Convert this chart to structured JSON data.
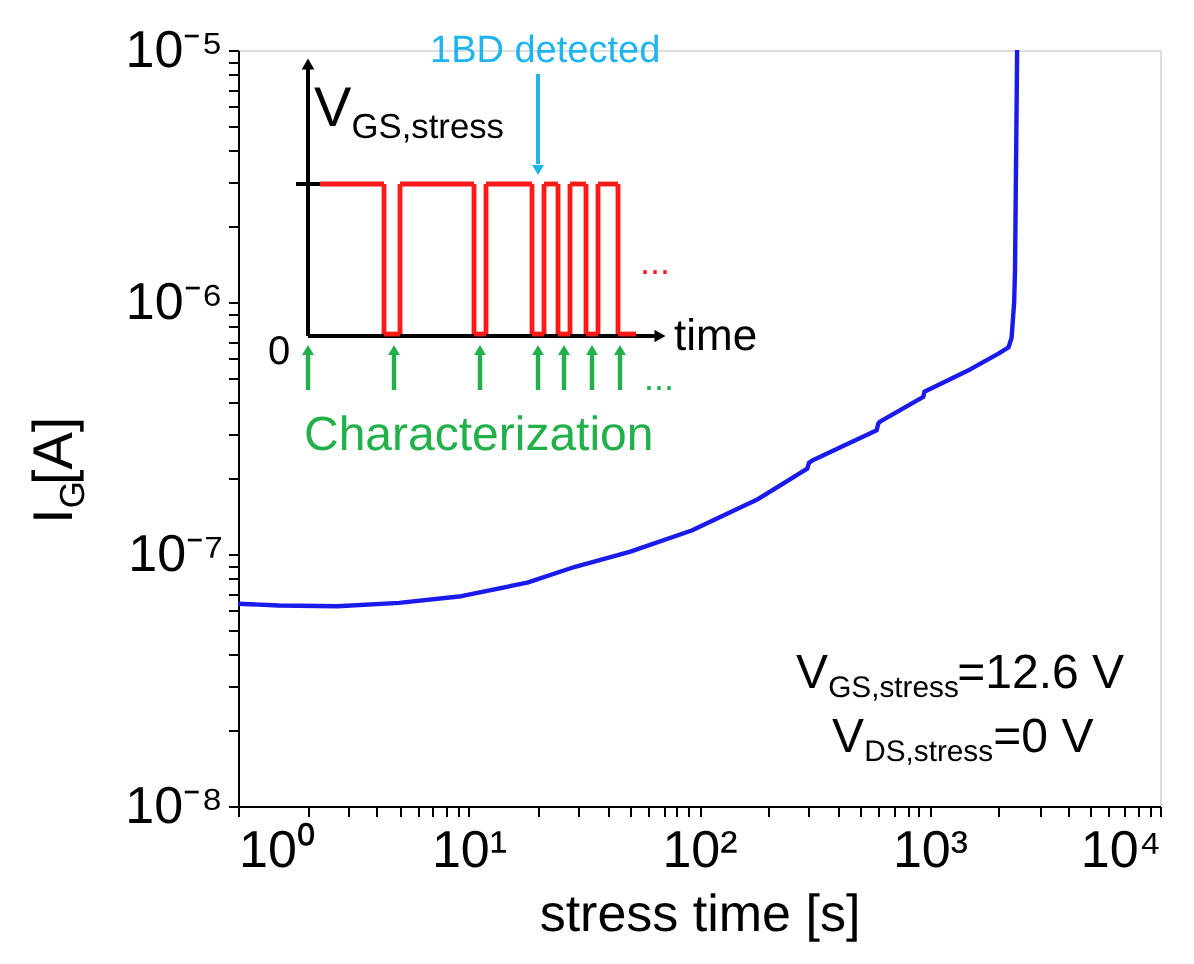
{
  "chart_data": {
    "type": "line",
    "xlabel": "stress time [s]",
    "ylabel": "I$_{G}$[A]",
    "log": "xy",
    "grid": false,
    "marker": "none",
    "line_style": "solid",
    "xlim": [
      1,
      10000
    ],
    "ylim": [
      1e-08,
      1e-05
    ],
    "xticks": [
      {
        "value": 1,
        "label": "10⁰"
      },
      {
        "value": 2,
        "label": null
      },
      {
        "value": 3,
        "label": null
      },
      {
        "value": 4,
        "label": null
      },
      {
        "value": 5,
        "label": null
      },
      {
        "value": 6,
        "label": null
      },
      {
        "value": 7,
        "label": null
      },
      {
        "value": 8,
        "label": null
      },
      {
        "value": 9,
        "label": null
      },
      {
        "value": 10,
        "label": "10¹"
      },
      {
        "value": 20,
        "label": null
      },
      {
        "value": 30,
        "label": null
      },
      {
        "value": 40,
        "label": null
      },
      {
        "value": 50,
        "label": null
      },
      {
        "value": 60,
        "label": null
      },
      {
        "value": 70,
        "label": null
      },
      {
        "value": 80,
        "label": null
      },
      {
        "value": 90,
        "label": null
      },
      {
        "value": 100,
        "label": "10²"
      },
      {
        "value": 200,
        "label": null
      },
      {
        "value": 300,
        "label": null
      },
      {
        "value": 400,
        "label": null
      },
      {
        "value": 500,
        "label": null
      },
      {
        "value": 600,
        "label": null
      },
      {
        "value": 700,
        "label": null
      },
      {
        "value": 800,
        "label": null
      },
      {
        "value": 900,
        "label": null
      },
      {
        "value": 1000,
        "label": "10³"
      },
      {
        "value": 2000,
        "label": null
      },
      {
        "value": 3000,
        "label": null
      },
      {
        "value": 4000,
        "label": null
      },
      {
        "value": 5000,
        "label": null
      },
      {
        "value": 6000,
        "label": null
      },
      {
        "value": 7000,
        "label": null
      },
      {
        "value": 8000,
        "label": null
      },
      {
        "value": 9000,
        "label": null
      },
      {
        "value": 10000,
        "label": "10⁴"
      }
    ],
    "yticks": [
      {
        "value": 1e-08,
        "label": "10⁻⁸"
      },
      {
        "value": 2e-08,
        "label": null
      },
      {
        "value": 3e-08,
        "label": null
      },
      {
        "value": 4e-08,
        "label": null
      },
      {
        "value": 5e-08,
        "label": null
      },
      {
        "value": 6e-08,
        "label": null
      },
      {
        "value": 7e-08,
        "label": null
      },
      {
        "value": 8e-08,
        "label": null
      },
      {
        "value": 9e-08,
        "label": null
      },
      {
        "value": 1e-07,
        "label": "10⁻⁷"
      },
      {
        "value": 2e-07,
        "label": null
      },
      {
        "value": 3e-07,
        "label": null
      },
      {
        "value": 4e-07,
        "label": null
      },
      {
        "value": 5e-07,
        "label": null
      },
      {
        "value": 6e-07,
        "label": null
      },
      {
        "value": 7e-07,
        "label": null
      },
      {
        "value": 8e-07,
        "label": null
      },
      {
        "value": 9e-07,
        "label": null
      },
      {
        "value": 1e-06,
        "label": "10⁻⁶"
      },
      {
        "value": 2e-06,
        "label": null
      },
      {
        "value": 3e-06,
        "label": null
      },
      {
        "value": 4e-06,
        "label": null
      },
      {
        "value": 5e-06,
        "label": null
      },
      {
        "value": 6e-06,
        "label": null
      },
      {
        "value": 7e-06,
        "label": null
      },
      {
        "value": 8e-06,
        "label": null
      },
      {
        "value": 9e-06,
        "label": null
      },
      {
        "value": 1e-05,
        "label": "10⁻⁵"
      }
    ],
    "series": [
      {
        "color": "#1a1aeb",
        "x": [
          1,
          1.5,
          2.7,
          5,
          9.3,
          18,
          29,
          50,
          93,
          180,
          295,
          300,
          310,
          590,
          600,
          610,
          940,
          950,
          1500,
          2000,
          2200,
          2270,
          2330,
          2350,
          2400
        ],
        "values": [
          6.35e-08,
          6.25e-08,
          6.2e-08,
          6.4e-08,
          6.8e-08,
          7.7e-08,
          8.9e-08,
          1.02e-07,
          1.24e-07,
          1.65e-07,
          2.18e-07,
          2.3e-07,
          2.35e-07,
          3.1e-07,
          3.3e-07,
          3.35e-07,
          4.2e-07,
          4.4e-07,
          5.4e-07,
          6.25e-07,
          6.6e-07,
          7.2e-07,
          1e-06,
          1.35e-06,
          1e-05
        ]
      }
    ],
    "annotations": [
      "1BD detected",
      "V$_{GS,stress}$",
      "0",
      "time",
      "Characterization",
      "...",
      "...",
      "V$_{GS,stress}$=12.6 V",
      "V$_{DS,stress}$=0 V"
    ]
  }
}
